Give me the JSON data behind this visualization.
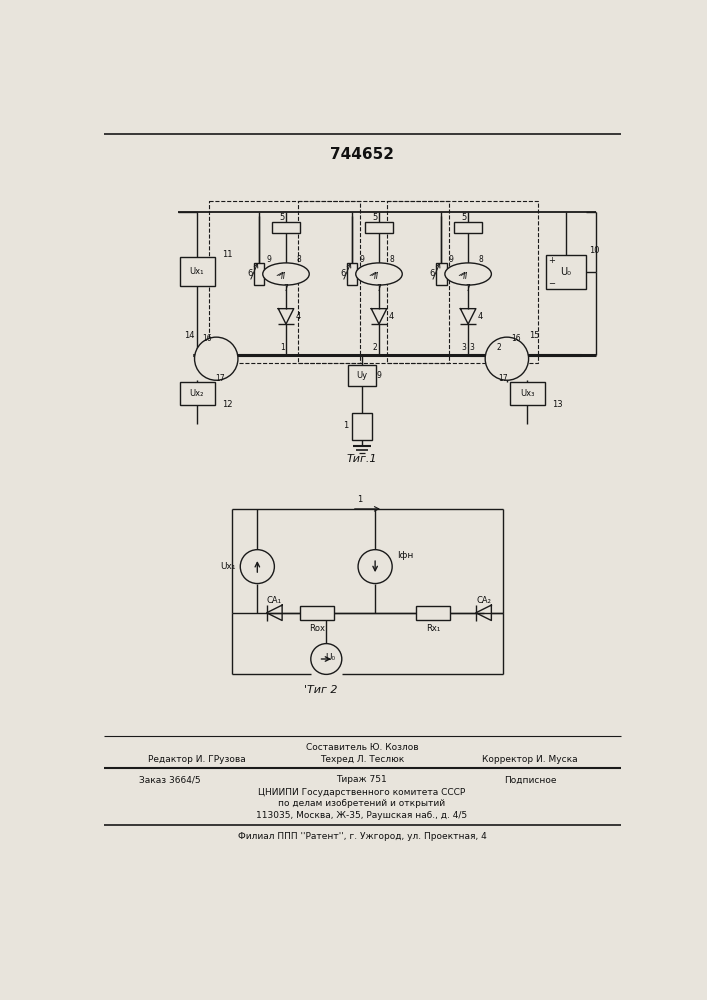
{
  "patent_number": "744652",
  "bg_color": "#e8e4dc",
  "fig1_caption": "Τиг.1",
  "fig2_caption": "Τиг 2",
  "compositor": "Составитель Ю. Козлов",
  "editor": "Редактор И. ГРузова",
  "techred": "Техред Л. Теслюк",
  "corrector": "Корректор И. Муска",
  "order": "Заказ 3664/5",
  "tirazh": "Тираж 751",
  "podpisnoe": "Подписное",
  "org1": "ЦНИИПИ Государственного комитета СССР",
  "org2": "по делам изобретений и открытий",
  "org3": "113035, Москва, Ж-35, Раушская наб., д. 4/5",
  "branch": "Филиал ППП ''Pатент'', г. Ужгород, ул. Проектная, 4",
  "lc": "#1a1a1a",
  "tc": "#111111"
}
